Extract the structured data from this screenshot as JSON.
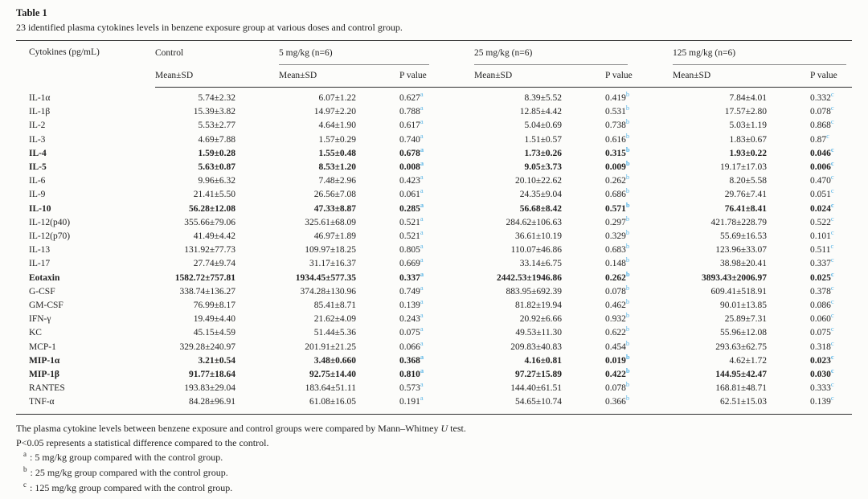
{
  "page": {
    "background": "#fcfcfa",
    "accent_sup_color": "#58b4e6",
    "rule_color": "#2e2e2e"
  },
  "table": {
    "label": "Table 1",
    "caption": "23 identified plasma cytokines levels in benzene exposure group at various doses and control group.",
    "col_header": "Cytokines (pg/mL)",
    "groups": [
      {
        "label": "Control",
        "sub": [
          "Mean±SD"
        ]
      },
      {
        "label": "5 mg/kg (n=6)",
        "sub": [
          "Mean±SD",
          "P value"
        ],
        "sup": "a"
      },
      {
        "label": "25 mg/kg (n=6)",
        "sub": [
          "Mean±SD",
          "P value"
        ],
        "sup": "b"
      },
      {
        "label": "125 mg/kg (n=6)",
        "sub": [
          "Mean±SD",
          "P value"
        ],
        "sup": "c"
      }
    ],
    "rows": [
      {
        "name": "IL-1α",
        "c": "5.74±2.32",
        "m5": "6.07±1.22",
        "p5": "0.627",
        "m25": "8.39±5.52",
        "p25": "0.419",
        "m125": "7.84±4.01",
        "p125": "0.332"
      },
      {
        "name": "IL-1β",
        "c": "15.39±3.82",
        "m5": "14.97±2.20",
        "p5": "0.788",
        "m25": "12.85±4.42",
        "p25": "0.531",
        "m125": "17.57±2.80",
        "p125": "0.078"
      },
      {
        "name": "IL-2",
        "c": "5.53±2.77",
        "m5": "4.64±1.90",
        "p5": "0.617",
        "m25": "5.04±0.69",
        "p25": "0.738",
        "m125": "5.03±1.19",
        "p125": "0.868"
      },
      {
        "name": "IL-3",
        "c": "4.69±7.88",
        "m5": "1.57±0.29",
        "p5": "0.740",
        "m25": "1.51±0.57",
        "p25": "0.616",
        "m125": "1.83±0.67",
        "p125": "0.87"
      },
      {
        "name": "IL-4",
        "nb": true,
        "c": "1.59±0.28",
        "cb": true,
        "m5": "1.55±0.48",
        "m5b": true,
        "p5": "0.678",
        "p5b": true,
        "m25": "1.73±0.26",
        "m25b": true,
        "p25": "0.315",
        "p25b": true,
        "m125": "1.93±0.22",
        "m125b": true,
        "p125": "0.046",
        "p125b": true
      },
      {
        "name": "IL-5",
        "nb": true,
        "c": "5.63±0.87",
        "cb": true,
        "m5": "8.53±1.20",
        "m5b": true,
        "p5": "0.008",
        "p5b": true,
        "m25": "9.05±3.73",
        "m25b": true,
        "p25": "0.009",
        "p25b": true,
        "m125": "19.17±17.03",
        "p125": "0.006",
        "p125b": true
      },
      {
        "name": "IL-6",
        "c": "9.96±6.32",
        "m5": "7.48±2.96",
        "p5": "0.423",
        "m25": "20.10±22.62",
        "p25": "0.262",
        "m125": "8.20±5.58",
        "p125": "0.470"
      },
      {
        "name": "IL-9",
        "c": "21.41±5.50",
        "m5": "26.56±7.08",
        "p5": "0.061",
        "m25": "24.35±9.04",
        "p25": "0.686",
        "m125": "29.76±7.41",
        "p125": "0.051"
      },
      {
        "name": "IL-10",
        "nb": true,
        "c": "56.28±12.08",
        "cb": true,
        "m5": "47.33±8.87",
        "m5b": true,
        "p5": "0.285",
        "p5b": true,
        "m25": "56.68±8.42",
        "m25b": true,
        "p25": "0.571",
        "p25b": true,
        "m125": "76.41±8.41",
        "m125b": true,
        "p125": "0.024",
        "p125b": true
      },
      {
        "name": "IL-12(p40)",
        "c": "355.66±79.06",
        "m5": "325.61±68.09",
        "p5": "0.521",
        "m25": "284.62±106.63",
        "p25": "0.297",
        "m125": "421.78±228.79",
        "p125": "0.522"
      },
      {
        "name": "IL-12(p70)",
        "c": "41.49±4.42",
        "m5": "46.97±1.89",
        "p5": "0.521",
        "m25": "36.61±10.19",
        "p25": "0.329",
        "m125": "55.69±16.53",
        "p125": "0.101"
      },
      {
        "name": "IL-13",
        "c": "131.92±77.73",
        "m5": "109.97±18.25",
        "p5": "0.805",
        "m25": "110.07±46.86",
        "p25": "0.683",
        "m125": "123.96±33.07",
        "p125": "0.511"
      },
      {
        "name": "IL-17",
        "c": "27.74±9.74",
        "m5": "31.17±16.37",
        "p5": "0.669",
        "m25": "33.14±6.75",
        "p25": "0.148",
        "m125": "38.98±20.41",
        "p125": "0.337"
      },
      {
        "name": "Eotaxin",
        "nb": true,
        "c": "1582.72±757.81",
        "cb": true,
        "m5": "1934.45±577.35",
        "m5b": true,
        "p5": "0.337",
        "p5b": true,
        "m25": "2442.53±1946.86",
        "m25b": true,
        "p25": "0.262",
        "p25b": true,
        "m125": "3893.43±2006.97",
        "m125b": true,
        "p125": "0.025",
        "p125b": true
      },
      {
        "name": "G-CSF",
        "c": "338.74±136.27",
        "m5": "374.28±130.96",
        "p5": "0.749",
        "m25": "883.95±692.39",
        "p25": "0.078",
        "m125": "609.41±518.91",
        "p125": "0.378"
      },
      {
        "name": "GM-CSF",
        "c": "76.99±8.17",
        "m5": "85.41±8.71",
        "p5": "0.139",
        "m25": "81.82±19.94",
        "p25": "0.462",
        "m125": "90.01±13.85",
        "p125": "0.086"
      },
      {
        "name": "IFN-γ",
        "c": "19.49±4.40",
        "m5": "21.62±4.09",
        "p5": "0.243",
        "m25": "20.92±6.66",
        "p25": "0.932",
        "m125": "25.89±7.31",
        "p125": "0.060"
      },
      {
        "name": "KC",
        "c": "45.15±4.59",
        "m5": "51.44±5.36",
        "p5": "0.075",
        "m25": "49.53±11.30",
        "p25": "0.622",
        "m125": "55.96±12.08",
        "p125": "0.075"
      },
      {
        "name": "MCP-1",
        "c": "329.28±240.97",
        "m5": "201.91±21.25",
        "p5": "0.066",
        "m25": "209.83±40.83",
        "p25": "0.454",
        "m125": "293.63±62.75",
        "p125": "0.318"
      },
      {
        "name": "MIP-1α",
        "nb": true,
        "c": "3.21±0.54",
        "cb": true,
        "m5": "3.48±0.660",
        "m5b": true,
        "p5": "0.368",
        "p5b": true,
        "m25": "4.16±0.81",
        "m25b": true,
        "p25": "0.019",
        "p25b": true,
        "m125": "4.62±1.72",
        "p125": "0.023",
        "p125b": true
      },
      {
        "name": "MIP-1β",
        "nb": true,
        "c": "91.77±18.64",
        "cb": true,
        "m5": "92.75±14.40",
        "m5b": true,
        "p5": "0.810",
        "p5b": true,
        "m25": "97.27±15.89",
        "m25b": true,
        "p25": "0.422",
        "p25b": true,
        "m125": "144.95±42.47",
        "m125b": true,
        "p125": "0.030",
        "p125b": true
      },
      {
        "name": "RANTES",
        "c": "193.83±29.04",
        "m5": "183.64±51.11",
        "p5": "0.573",
        "m25": "144.40±61.51",
        "p25": "0.078",
        "m125": "168.81±48.71",
        "p125": "0.333"
      },
      {
        "name": "TNF-α",
        "c": "84.28±96.91",
        "m5": "61.08±16.05",
        "p5": "0.191",
        "m25": "54.65±10.74",
        "p25": "0.366",
        "m125": "62.51±15.03",
        "p125": "0.139"
      }
    ],
    "footnotes": {
      "method_pre": "The plasma cytokine levels between benzene exposure and control groups were compared by Mann–Whitney ",
      "method_italic": "U",
      "method_post": " test.",
      "pvalue_note": "P<0.05 represents a statistical difference compared to the control.",
      "marked": [
        {
          "sup": "a",
          "text": ": 5 mg/kg group compared with the control group."
        },
        {
          "sup": "b",
          "text": ": 25 mg/kg group compared with the control group."
        },
        {
          "sup": "c",
          "text": ": 125 mg/kg group compared with the control group."
        }
      ]
    }
  }
}
